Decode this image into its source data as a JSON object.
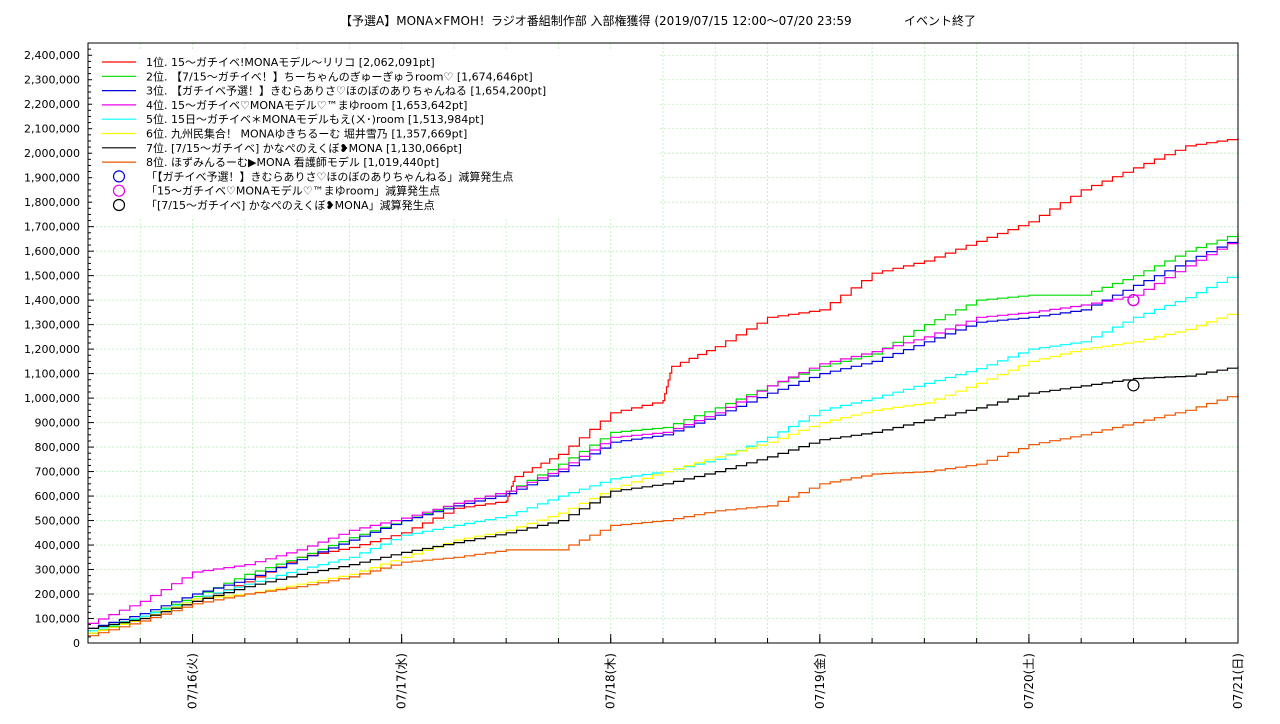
{
  "chart_data": {
    "type": "line",
    "title": "【予選A】MONA×FMOH！ラジオ番組制作部 入部権獲得 (2019/07/15 12:00〜07/20 23:59",
    "status": "イベント終了",
    "ylim": [
      0,
      2450000
    ],
    "ytick_values": [
      0,
      100000,
      200000,
      300000,
      400000,
      500000,
      600000,
      700000,
      800000,
      900000,
      1000000,
      1100000,
      1200000,
      1300000,
      1400000,
      1500000,
      1600000,
      1700000,
      1800000,
      1900000,
      2000000,
      2100000,
      2200000,
      2300000,
      2400000
    ],
    "ytick_labels": [
      "0",
      "100,000",
      "200,000",
      "300,000",
      "400,000",
      "500,000",
      "600,000",
      "700,000",
      "800,000",
      "900,000",
      "1,000,000",
      "1,100,000",
      "1,200,000",
      "1,300,000",
      "1,400,000",
      "1,500,000",
      "1,600,000",
      "1,700,000",
      "1,800,000",
      "1,900,000",
      "2,000,000",
      "2,100,000",
      "2,200,000",
      "2,300,000",
      "2,400,000"
    ],
    "xlim": [
      "2019-07-15 12:00",
      "2019-07-21 00:00"
    ],
    "xticks": [
      {
        "x": "2019-07-16 00:00",
        "label": "07/16(火)"
      },
      {
        "x": "2019-07-17 00:00",
        "label": "07/17(水)"
      },
      {
        "x": "2019-07-18 00:00",
        "label": "07/18(木)"
      },
      {
        "x": "2019-07-19 00:00",
        "label": "07/19(金)"
      },
      {
        "x": "2019-07-20 00:00",
        "label": "07/20(土)"
      },
      {
        "x": "2019-07-21 00:00",
        "label": "07/21(日)"
      }
    ],
    "grid": true,
    "legend_position": "top-left",
    "series": [
      {
        "name": "1位. 15〜ガチイベ!MONAモデル〜リリコ [2,062,091pt]",
        "color": "#ff0000",
        "points": [
          [
            "2019-07-15 12:00",
            40000
          ],
          [
            "2019-07-15 18:00",
            100000
          ],
          [
            "2019-07-16 00:00",
            170000
          ],
          [
            "2019-07-16 06:00",
            250000
          ],
          [
            "2019-07-16 12:00",
            350000
          ],
          [
            "2019-07-16 18:00",
            390000
          ],
          [
            "2019-07-17 00:00",
            450000
          ],
          [
            "2019-07-17 06:00",
            550000
          ],
          [
            "2019-07-17 12:00",
            580000
          ],
          [
            "2019-07-17 13:00",
            680000
          ],
          [
            "2019-07-17 18:00",
            770000
          ],
          [
            "2019-07-18 00:00",
            940000
          ],
          [
            "2019-07-18 06:00",
            990000
          ],
          [
            "2019-07-18 07:00",
            1130000
          ],
          [
            "2019-07-18 12:00",
            1210000
          ],
          [
            "2019-07-18 18:00",
            1330000
          ],
          [
            "2019-07-19 00:00",
            1360000
          ],
          [
            "2019-07-19 06:00",
            1510000
          ],
          [
            "2019-07-19 12:00",
            1560000
          ],
          [
            "2019-07-19 18:00",
            1640000
          ],
          [
            "2019-07-20 00:00",
            1720000
          ],
          [
            "2019-07-20 06:00",
            1850000
          ],
          [
            "2019-07-20 12:00",
            1940000
          ],
          [
            "2019-07-20 18:00",
            2030000
          ],
          [
            "2019-07-21 00:00",
            2062091
          ]
        ]
      },
      {
        "name": "2位. 【7/15〜ガチイベ！】ちーちゃんのぎゅーぎゅうroom♡ [1,674,646pt]",
        "color": "#00dd00",
        "points": [
          [
            "2019-07-15 12:00",
            40000
          ],
          [
            "2019-07-15 18:00",
            110000
          ],
          [
            "2019-07-16 00:00",
            190000
          ],
          [
            "2019-07-16 06:00",
            280000
          ],
          [
            "2019-07-16 12:00",
            350000
          ],
          [
            "2019-07-16 18:00",
            430000
          ],
          [
            "2019-07-17 00:00",
            500000
          ],
          [
            "2019-07-17 06:00",
            570000
          ],
          [
            "2019-07-17 12:00",
            620000
          ],
          [
            "2019-07-17 18:00",
            730000
          ],
          [
            "2019-07-18 00:00",
            860000
          ],
          [
            "2019-07-18 06:00",
            880000
          ],
          [
            "2019-07-18 12:00",
            960000
          ],
          [
            "2019-07-18 18:00",
            1050000
          ],
          [
            "2019-07-19 00:00",
            1130000
          ],
          [
            "2019-07-19 06:00",
            1180000
          ],
          [
            "2019-07-19 12:00",
            1300000
          ],
          [
            "2019-07-19 18:00",
            1400000
          ],
          [
            "2019-07-20 00:00",
            1420000
          ],
          [
            "2019-07-20 06:00",
            1420000
          ],
          [
            "2019-07-20 12:00",
            1500000
          ],
          [
            "2019-07-20 18:00",
            1600000
          ],
          [
            "2019-07-21 00:00",
            1674646
          ]
        ]
      },
      {
        "name": "3位. 【ガチイベ予選！】きむらありさ♡ほのぼのありちゃんねる [1,654,200pt]",
        "color": "#0000dd",
        "points": [
          [
            "2019-07-15 12:00",
            60000
          ],
          [
            "2019-07-15 18:00",
            120000
          ],
          [
            "2019-07-16 00:00",
            200000
          ],
          [
            "2019-07-16 06:00",
            260000
          ],
          [
            "2019-07-16 12:00",
            340000
          ],
          [
            "2019-07-16 18:00",
            420000
          ],
          [
            "2019-07-17 00:00",
            500000
          ],
          [
            "2019-07-17 06:00",
            560000
          ],
          [
            "2019-07-17 12:00",
            610000
          ],
          [
            "2019-07-17 18:00",
            700000
          ],
          [
            "2019-07-18 00:00",
            820000
          ],
          [
            "2019-07-18 06:00",
            850000
          ],
          [
            "2019-07-18 12:00",
            930000
          ],
          [
            "2019-07-18 18:00",
            1020000
          ],
          [
            "2019-07-19 00:00",
            1100000
          ],
          [
            "2019-07-19 06:00",
            1150000
          ],
          [
            "2019-07-19 12:00",
            1230000
          ],
          [
            "2019-07-19 18:00",
            1310000
          ],
          [
            "2019-07-20 00:00",
            1330000
          ],
          [
            "2019-07-20 06:00",
            1360000
          ],
          [
            "2019-07-20 12:00",
            1460000
          ],
          [
            "2019-07-20 18:00",
            1560000
          ],
          [
            "2019-07-21 00:00",
            1654200
          ]
        ]
      },
      {
        "name": "4位. 15〜ガチイベ♡MONAモデル♡™まゆroom [1,653,642pt]",
        "color": "#ee00ee",
        "points": [
          [
            "2019-07-15 12:00",
            80000
          ],
          [
            "2019-07-15 18:00",
            170000
          ],
          [
            "2019-07-16 00:00",
            290000
          ],
          [
            "2019-07-16 06:00",
            320000
          ],
          [
            "2019-07-16 12:00",
            380000
          ],
          [
            "2019-07-16 18:00",
            460000
          ],
          [
            "2019-07-17 00:00",
            510000
          ],
          [
            "2019-07-17 06:00",
            570000
          ],
          [
            "2019-07-17 12:00",
            620000
          ],
          [
            "2019-07-17 18:00",
            710000
          ],
          [
            "2019-07-18 00:00",
            840000
          ],
          [
            "2019-07-18 06:00",
            860000
          ],
          [
            "2019-07-18 12:00",
            940000
          ],
          [
            "2019-07-18 18:00",
            1050000
          ],
          [
            "2019-07-19 00:00",
            1140000
          ],
          [
            "2019-07-19 06:00",
            1190000
          ],
          [
            "2019-07-19 12:00",
            1250000
          ],
          [
            "2019-07-19 18:00",
            1330000
          ],
          [
            "2019-07-20 00:00",
            1350000
          ],
          [
            "2019-07-20 06:00",
            1380000
          ],
          [
            "2019-07-20 12:00",
            1420000
          ],
          [
            "2019-07-20 18:00",
            1540000
          ],
          [
            "2019-07-21 00:00",
            1653642
          ]
        ]
      },
      {
        "name": "5位. 15日〜ガチイベ＊MONAモデルもえ(ㄨ･)room [1,513,984pt]",
        "color": "#00ffff",
        "points": [
          [
            "2019-07-15 12:00",
            50000
          ],
          [
            "2019-07-15 18:00",
            110000
          ],
          [
            "2019-07-16 00:00",
            180000
          ],
          [
            "2019-07-16 06:00",
            240000
          ],
          [
            "2019-07-16 12:00",
            300000
          ],
          [
            "2019-07-16 18:00",
            350000
          ],
          [
            "2019-07-17 00:00",
            440000
          ],
          [
            "2019-07-17 06:00",
            480000
          ],
          [
            "2019-07-17 12:00",
            520000
          ],
          [
            "2019-07-17 18:00",
            600000
          ],
          [
            "2019-07-18 00:00",
            670000
          ],
          [
            "2019-07-18 06:00",
            700000
          ],
          [
            "2019-07-18 12:00",
            750000
          ],
          [
            "2019-07-18 18:00",
            840000
          ],
          [
            "2019-07-19 00:00",
            950000
          ],
          [
            "2019-07-19 06:00",
            1000000
          ],
          [
            "2019-07-19 12:00",
            1060000
          ],
          [
            "2019-07-19 18:00",
            1120000
          ],
          [
            "2019-07-20 00:00",
            1200000
          ],
          [
            "2019-07-20 06:00",
            1230000
          ],
          [
            "2019-07-20 12:00",
            1330000
          ],
          [
            "2019-07-20 18:00",
            1410000
          ],
          [
            "2019-07-21 00:00",
            1513984
          ]
        ]
      },
      {
        "name": "6位. 九州民集合！ MONAゆきちるーむ 堀井雪乃 [1,357,669pt]",
        "color": "#ffff00",
        "points": [
          [
            "2019-07-15 12:00",
            40000
          ],
          [
            "2019-07-15 18:00",
            100000
          ],
          [
            "2019-07-16 00:00",
            180000
          ],
          [
            "2019-07-16 06:00",
            200000
          ],
          [
            "2019-07-16 12:00",
            240000
          ],
          [
            "2019-07-16 18:00",
            280000
          ],
          [
            "2019-07-17 00:00",
            350000
          ],
          [
            "2019-07-17 06:00",
            420000
          ],
          [
            "2019-07-17 12:00",
            460000
          ],
          [
            "2019-07-17 18:00",
            530000
          ],
          [
            "2019-07-18 00:00",
            630000
          ],
          [
            "2019-07-18 06:00",
            700000
          ],
          [
            "2019-07-18 12:00",
            760000
          ],
          [
            "2019-07-18 18:00",
            820000
          ],
          [
            "2019-07-19 00:00",
            900000
          ],
          [
            "2019-07-19 06:00",
            950000
          ],
          [
            "2019-07-19 12:00",
            980000
          ],
          [
            "2019-07-19 18:00",
            1060000
          ],
          [
            "2019-07-20 00:00",
            1150000
          ],
          [
            "2019-07-20 06:00",
            1200000
          ],
          [
            "2019-07-20 12:00",
            1230000
          ],
          [
            "2019-07-20 18:00",
            1280000
          ],
          [
            "2019-07-21 00:00",
            1357669
          ]
        ]
      },
      {
        "name": "7位. [7/15〜ガチイベ] かなぺのえくぼ❥MONA [1,130,066pt]",
        "color": "#000000",
        "points": [
          [
            "2019-07-15 12:00",
            60000
          ],
          [
            "2019-07-15 18:00",
            100000
          ],
          [
            "2019-07-16 00:00",
            170000
          ],
          [
            "2019-07-16 06:00",
            230000
          ],
          [
            "2019-07-16 12:00",
            280000
          ],
          [
            "2019-07-16 18:00",
            320000
          ],
          [
            "2019-07-17 00:00",
            370000
          ],
          [
            "2019-07-17 06:00",
            410000
          ],
          [
            "2019-07-17 12:00",
            450000
          ],
          [
            "2019-07-17 18:00",
            500000
          ],
          [
            "2019-07-18 00:00",
            620000
          ],
          [
            "2019-07-18 06:00",
            650000
          ],
          [
            "2019-07-18 12:00",
            700000
          ],
          [
            "2019-07-18 18:00",
            760000
          ],
          [
            "2019-07-19 00:00",
            830000
          ],
          [
            "2019-07-19 06:00",
            860000
          ],
          [
            "2019-07-19 12:00",
            910000
          ],
          [
            "2019-07-19 18:00",
            960000
          ],
          [
            "2019-07-20 00:00",
            1020000
          ],
          [
            "2019-07-20 06:00",
            1050000
          ],
          [
            "2019-07-20 12:00",
            1080000
          ],
          [
            "2019-07-20 18:00",
            1090000
          ],
          [
            "2019-07-21 00:00",
            1130066
          ]
        ]
      },
      {
        "name": "8位. ほずみんるーむ▶MONA 看護師モデル [1,019,440pt]",
        "color": "#ee5500",
        "points": [
          [
            "2019-07-15 12:00",
            30000
          ],
          [
            "2019-07-15 18:00",
            90000
          ],
          [
            "2019-07-16 00:00",
            160000
          ],
          [
            "2019-07-16 06:00",
            200000
          ],
          [
            "2019-07-16 12:00",
            230000
          ],
          [
            "2019-07-16 18:00",
            270000
          ],
          [
            "2019-07-17 00:00",
            330000
          ],
          [
            "2019-07-17 06:00",
            350000
          ],
          [
            "2019-07-17 12:00",
            380000
          ],
          [
            "2019-07-17 18:00",
            380000
          ],
          [
            "2019-07-18 00:00",
            480000
          ],
          [
            "2019-07-18 06:00",
            500000
          ],
          [
            "2019-07-18 12:00",
            540000
          ],
          [
            "2019-07-18 18:00",
            560000
          ],
          [
            "2019-07-19 00:00",
            650000
          ],
          [
            "2019-07-19 06:00",
            690000
          ],
          [
            "2019-07-19 12:00",
            700000
          ],
          [
            "2019-07-19 18:00",
            730000
          ],
          [
            "2019-07-20 00:00",
            810000
          ],
          [
            "2019-07-20 06:00",
            850000
          ],
          [
            "2019-07-20 12:00",
            900000
          ],
          [
            "2019-07-20 18:00",
            950000
          ],
          [
            "2019-07-21 00:00",
            1019440
          ]
        ]
      }
    ],
    "markers": [
      {
        "name": "「【ガチイベ予選！】きむらありさ♡ほのぼのありちゃんねる」減算発生点",
        "color": "#0000dd",
        "x": "2019-07-20 12:00",
        "y": 1400000
      },
      {
        "name": "「15〜ガチイベ♡MONAモデル♡™まゆroom」減算発生点",
        "color": "#ee00ee",
        "x": "2019-07-20 12:00",
        "y": 1400000
      },
      {
        "name": "「[7/15〜ガチイベ] かなぺのえくぼ❥MONA」減算発生点",
        "color": "#000000",
        "x": "2019-07-20 12:00",
        "y": 1052000
      }
    ]
  }
}
